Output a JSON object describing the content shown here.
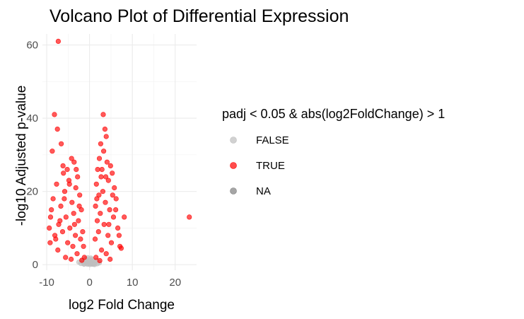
{
  "chart_data": {
    "type": "scatter",
    "title": "Volcano Plot of Differential Expression",
    "xlabel": "log2 Fold Change",
    "ylabel": "-log10 Adjusted p-value",
    "xlim": [
      -11,
      25
    ],
    "ylim": [
      -1.5,
      63
    ],
    "x_ticks": [
      -10,
      0,
      10,
      20
    ],
    "y_ticks": [
      0,
      20,
      40,
      60
    ],
    "grid": true,
    "legend": {
      "title": "padj < 0.05 & abs(log2FoldChange) > 1",
      "placement": "right",
      "entries": [
        {
          "label": "FALSE",
          "color": "#bebebe"
        },
        {
          "label": "TRUE",
          "color": "#ff0000"
        },
        {
          "label": "NA",
          "color": "#7f7f7f"
        }
      ]
    },
    "series": [
      {
        "name": "FALSE",
        "color": "#bebebe",
        "points": [
          [
            -1.2,
            0.2
          ],
          [
            -0.8,
            0.5
          ],
          [
            -0.5,
            0.1
          ],
          [
            -0.3,
            0.8
          ],
          [
            0,
            0.3
          ],
          [
            0.2,
            0.6
          ],
          [
            0.5,
            0.2
          ],
          [
            0.8,
            0.9
          ],
          [
            1.0,
            0.4
          ],
          [
            -1.0,
            1.0
          ],
          [
            -0.2,
            1.3
          ],
          [
            0.4,
            1.1
          ],
          [
            -1.5,
            0.6
          ],
          [
            1.3,
            0.7
          ],
          [
            0.1,
            0.05
          ],
          [
            -0.6,
            0.35
          ],
          [
            0.7,
            0.15
          ],
          [
            -2.0,
            0.3
          ],
          [
            1.8,
            0.25
          ],
          [
            -0.9,
            1.6
          ],
          [
            0.6,
            1.5
          ],
          [
            -0.4,
            1.9
          ],
          [
            0.3,
            1.8
          ],
          [
            -1.8,
            1.2
          ],
          [
            1.6,
            1.1
          ],
          [
            -2.5,
            0.7
          ],
          [
            2.3,
            0.5
          ],
          [
            0,
            1.0
          ],
          [
            -0.1,
            0.7
          ],
          [
            0.9,
            0.1
          ],
          [
            -1.3,
            0.15
          ],
          [
            1.2,
            0.05
          ]
        ]
      },
      {
        "name": "TRUE",
        "color": "#ff0000",
        "points": [
          [
            -7.3,
            61
          ],
          [
            -8.2,
            41
          ],
          [
            -7.5,
            37
          ],
          [
            -6.6,
            33
          ],
          [
            -8.7,
            31
          ],
          [
            -4.2,
            29
          ],
          [
            -3.6,
            28
          ],
          [
            -5.2,
            26
          ],
          [
            -6.1,
            25
          ],
          [
            -2.8,
            24
          ],
          [
            -4.8,
            23
          ],
          [
            -7.7,
            22
          ],
          [
            -3.2,
            21
          ],
          [
            -5.8,
            20
          ],
          [
            -2.3,
            19
          ],
          [
            -8.5,
            18
          ],
          [
            -4.1,
            17
          ],
          [
            -6.7,
            16
          ],
          [
            -1.9,
            15
          ],
          [
            -3.7,
            14
          ],
          [
            -5.5,
            13
          ],
          [
            -9.1,
            13
          ],
          [
            -2.6,
            12
          ],
          [
            -7.2,
            11
          ],
          [
            -4.6,
            10
          ],
          [
            -1.6,
            9
          ],
          [
            -6.3,
            9
          ],
          [
            -3.3,
            8
          ],
          [
            -8.1,
            8
          ],
          [
            -2.1,
            7
          ],
          [
            -5.1,
            6
          ],
          [
            -9.2,
            6
          ],
          [
            -1.4,
            5
          ],
          [
            -3.9,
            5
          ],
          [
            -7.4,
            4
          ],
          [
            -2.9,
            3
          ],
          [
            -1.2,
            2
          ],
          [
            -5.6,
            2
          ],
          [
            -4.3,
            1.5
          ],
          [
            -1.8,
            1.2
          ],
          [
            -6.2,
            27
          ],
          [
            -3.1,
            26
          ],
          [
            -8.9,
            15
          ],
          [
            -9.4,
            10
          ],
          [
            -5.9,
            18
          ],
          [
            -4.7,
            22
          ],
          [
            -2.4,
            16
          ],
          [
            -6.9,
            12
          ],
          [
            -3.5,
            11
          ],
          [
            -7.9,
            7
          ],
          [
            3.2,
            41
          ],
          [
            3.6,
            37
          ],
          [
            3.9,
            35
          ],
          [
            2.6,
            33
          ],
          [
            3.3,
            31
          ],
          [
            2.3,
            29
          ],
          [
            4.1,
            28
          ],
          [
            4.9,
            27
          ],
          [
            1.9,
            26
          ],
          [
            5.3,
            25
          ],
          [
            2.7,
            24
          ],
          [
            4.4,
            23
          ],
          [
            1.6,
            22
          ],
          [
            5.8,
            21
          ],
          [
            3.1,
            20
          ],
          [
            2.2,
            19
          ],
          [
            6.2,
            18
          ],
          [
            3.7,
            17
          ],
          [
            1.4,
            16
          ],
          [
            4.7,
            15
          ],
          [
            2.5,
            14
          ],
          [
            5.6,
            13
          ],
          [
            8.1,
            13
          ],
          [
            1.8,
            12
          ],
          [
            3.4,
            11
          ],
          [
            6.6,
            10
          ],
          [
            2.1,
            9
          ],
          [
            4.3,
            8
          ],
          [
            1.3,
            7
          ],
          [
            5.1,
            6
          ],
          [
            7.1,
            5
          ],
          [
            2.8,
            4
          ],
          [
            3.9,
            3
          ],
          [
            1.5,
            2
          ],
          [
            4.8,
            1.5
          ],
          [
            2.4,
            1.1
          ],
          [
            23.3,
            13
          ],
          [
            6.9,
            8
          ],
          [
            7.4,
            4.5
          ],
          [
            5.4,
            19
          ],
          [
            3.8,
            24
          ],
          [
            2.9,
            26
          ],
          [
            6.1,
            15
          ],
          [
            4.5,
            11
          ],
          [
            1.7,
            18
          ]
        ]
      },
      {
        "name": "NA",
        "color": "#7f7f7f",
        "points": []
      }
    ]
  }
}
